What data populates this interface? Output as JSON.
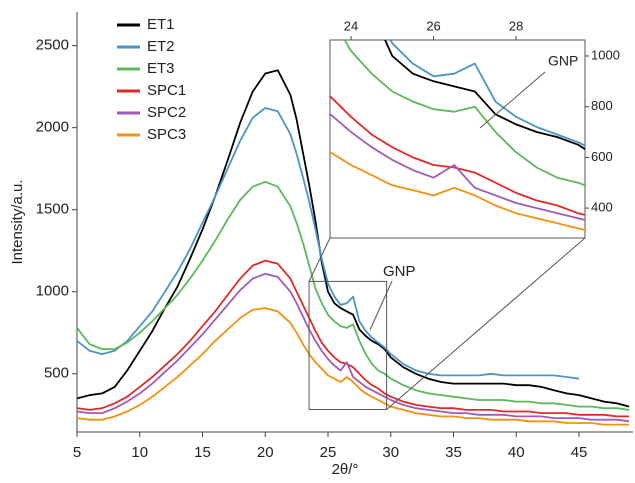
{
  "chart_data": [
    {
      "type": "line",
      "xlabel": "2θ/°",
      "ylabel": "Intensity/a.u.",
      "annotation": "GNP",
      "legend": "upper left",
      "xlim": [
        5,
        49.3
      ],
      "ylim": [
        145,
        2705
      ],
      "xticks": [
        5,
        10,
        15,
        20,
        25,
        30,
        35,
        40,
        45
      ],
      "yticks": [
        500,
        1000,
        1500,
        2000,
        2500
      ],
      "x": [
        5,
        6,
        7,
        8,
        9,
        10,
        11,
        12,
        13,
        14,
        15,
        16,
        17,
        18,
        19,
        20,
        21,
        22,
        22.5,
        23,
        23.5,
        24,
        24.5,
        25,
        25.5,
        26,
        26.5,
        27,
        27.5,
        28,
        28.5,
        29,
        29.5,
        30,
        31,
        32,
        33,
        34,
        35,
        36,
        37,
        38,
        39,
        40,
        41,
        42,
        43,
        44,
        45,
        46,
        47,
        48,
        49
      ],
      "series": [
        {
          "name": "ET1",
          "color": "#000000",
          "values": [
            350,
            370,
            380,
            420,
            520,
            640,
            760,
            900,
            1030,
            1200,
            1380,
            1580,
            1800,
            2030,
            2220,
            2330,
            2350,
            2200,
            2050,
            1850,
            1650,
            1430,
            1180,
            1000,
            930,
            900,
            880,
            860,
            770,
            730,
            700,
            680,
            650,
            600,
            540,
            500,
            470,
            450,
            440,
            440,
            440,
            440,
            440,
            430,
            430,
            420,
            400,
            380,
            370,
            350,
            330,
            320,
            300
          ]
        },
        {
          "name": "ET2",
          "color": "#4a94c8",
          "values": [
            700,
            640,
            620,
            640,
            700,
            790,
            880,
            1000,
            1120,
            1260,
            1420,
            1580,
            1750,
            1920,
            2060,
            2120,
            2100,
            1960,
            1840,
            1700,
            1550,
            1380,
            1200,
            1050,
            970,
            920,
            930,
            970,
            820,
            760,
            720,
            690,
            660,
            620,
            560,
            520,
            500,
            490,
            490,
            490,
            490,
            500,
            490,
            490,
            490,
            490,
            490,
            480,
            470,
            null,
            null,
            null,
            null
          ]
        },
        {
          "name": "ET3",
          "color": "#5cb85c",
          "values": [
            780,
            680,
            650,
            650,
            690,
            750,
            820,
            900,
            980,
            1080,
            1190,
            1310,
            1440,
            1560,
            1640,
            1670,
            1640,
            1520,
            1420,
            1300,
            1160,
            1020,
            930,
            860,
            820,
            790,
            780,
            800,
            700,
            620,
            560,
            520,
            500,
            470,
            430,
            400,
            380,
            370,
            360,
            350,
            340,
            340,
            340,
            330,
            330,
            320,
            320,
            310,
            300,
            300,
            290,
            290,
            280
          ]
        },
        {
          "name": "SPC1",
          "color": "#e02a2a",
          "values": [
            290,
            280,
            290,
            320,
            360,
            420,
            480,
            550,
            620,
            700,
            790,
            880,
            980,
            1080,
            1160,
            1190,
            1170,
            1080,
            1000,
            920,
            840,
            760,
            690,
            640,
            600,
            570,
            560,
            540,
            500,
            460,
            430,
            410,
            380,
            360,
            330,
            310,
            300,
            290,
            290,
            280,
            280,
            280,
            270,
            270,
            270,
            260,
            260,
            260,
            250,
            250,
            250,
            240,
            240
          ]
        },
        {
          "name": "SPC2",
          "color": "#a05ab8",
          "values": [
            270,
            260,
            260,
            290,
            330,
            380,
            440,
            510,
            580,
            660,
            740,
            830,
            920,
            1010,
            1080,
            1110,
            1090,
            1000,
            930,
            850,
            770,
            700,
            640,
            590,
            550,
            520,
            570,
            480,
            450,
            420,
            400,
            380,
            360,
            340,
            310,
            290,
            280,
            270,
            260,
            260,
            250,
            250,
            250,
            240,
            240,
            240,
            230,
            230,
            230,
            220,
            220,
            220,
            210
          ]
        },
        {
          "name": "SPC3",
          "color": "#f59010",
          "values": [
            230,
            220,
            220,
            240,
            270,
            310,
            360,
            420,
            480,
            550,
            620,
            700,
            770,
            840,
            890,
            900,
            880,
            810,
            750,
            680,
            620,
            570,
            530,
            490,
            470,
            450,
            480,
            450,
            410,
            380,
            360,
            340,
            320,
            300,
            280,
            260,
            250,
            240,
            240,
            230,
            230,
            220,
            220,
            220,
            210,
            210,
            210,
            200,
            200,
            200,
            190,
            190,
            190
          ]
        }
      ]
    },
    {
      "type": "line",
      "annotation": "GNP",
      "xlim": [
        23.49,
        29.67
      ],
      "ylim": [
        282,
        1063
      ],
      "xticks": [
        24,
        26,
        28
      ],
      "yticks": [
        400,
        600,
        800,
        1000
      ]
    }
  ]
}
